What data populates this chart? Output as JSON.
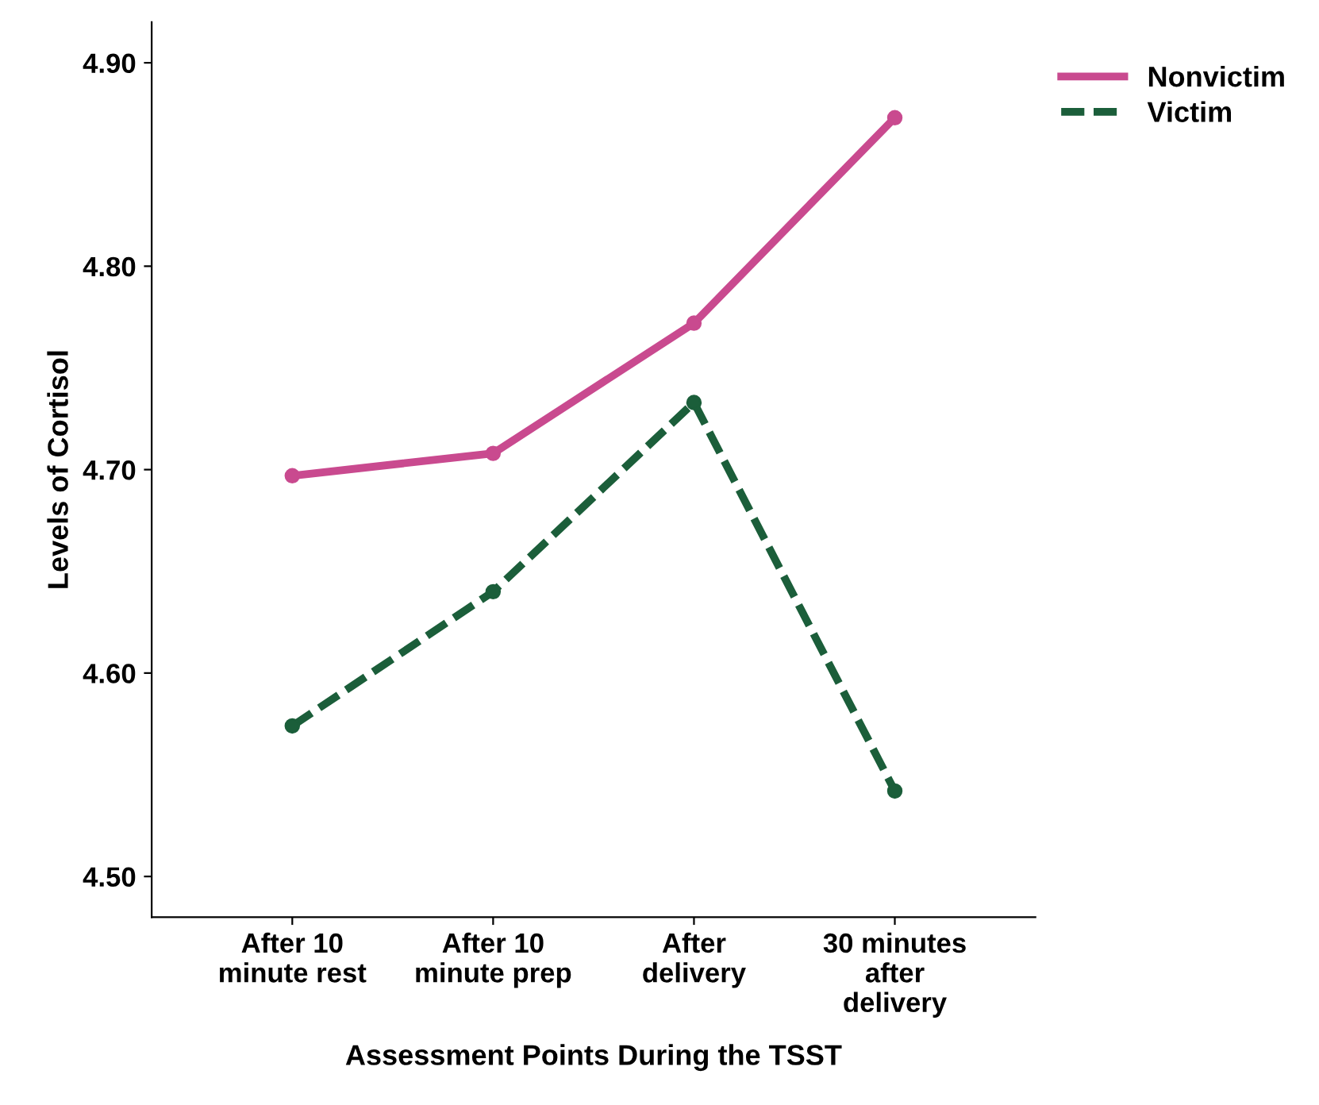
{
  "chart_data": {
    "type": "line",
    "xlabel": "Assessment Points During the TSST",
    "ylabel": "Levels of Cortisol",
    "categories": [
      "After 10\nminute rest",
      "After 10\nminute prep",
      "After\ndelivery",
      "30 minutes\nafter\ndelivery"
    ],
    "series": [
      {
        "name": "Nonvictim",
        "color": "#c94a8f",
        "values": [
          4.697,
          4.708,
          4.772,
          4.873
        ],
        "line_style": "solid"
      },
      {
        "name": "Victim",
        "color": "#1b5e3a",
        "values": [
          4.574,
          4.64,
          4.733,
          4.542
        ],
        "line_style": "dashed"
      }
    ],
    "ylim": [
      4.48,
      4.92
    ],
    "yticks": [
      {
        "value": 4.5,
        "label": "4.50"
      },
      {
        "value": 4.6,
        "label": "4.60"
      },
      {
        "value": 4.7,
        "label": "4.70"
      },
      {
        "value": 4.8,
        "label": "4.80"
      },
      {
        "value": 4.9,
        "label": "4.90"
      }
    ],
    "marker": "circle",
    "legend": "top right",
    "grid": false
  }
}
